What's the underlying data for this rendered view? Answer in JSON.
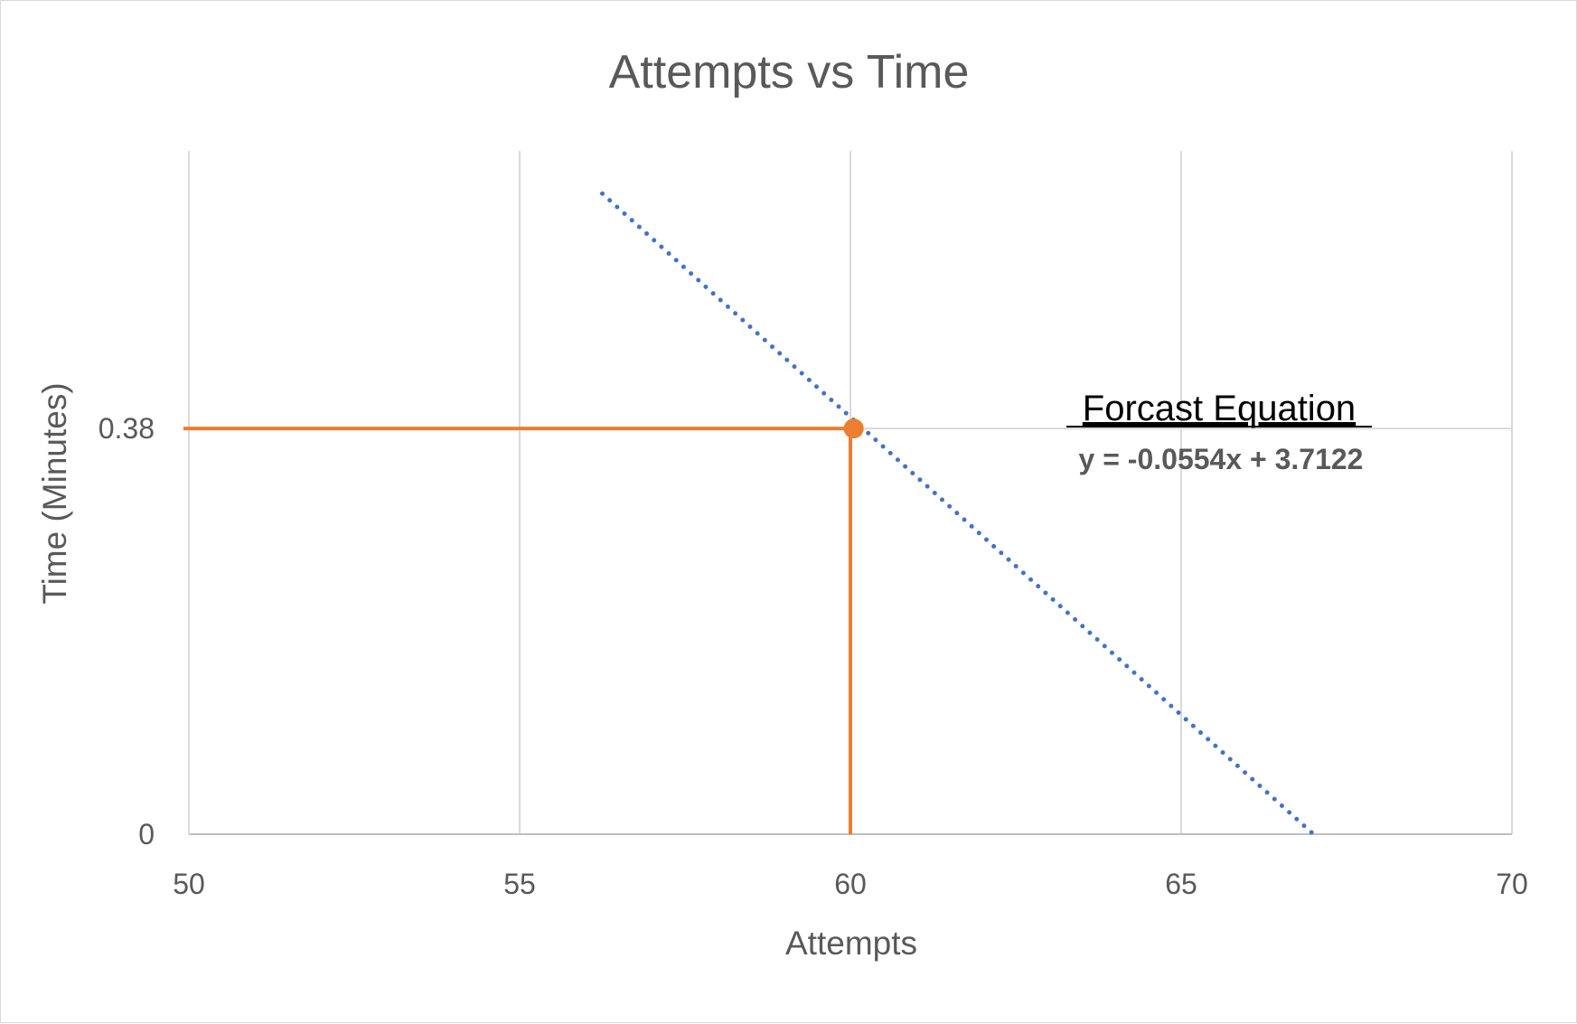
{
  "chart_data": {
    "type": "line",
    "title": "Attempts vs Time",
    "xlabel": "Attempts",
    "ylabel": "Time (Minutes)",
    "xlim": [
      50,
      70
    ],
    "ylim": [
      0,
      0.64
    ],
    "x_ticks": [
      "50",
      "55",
      "60",
      "65",
      "70"
    ],
    "x_tick_values": [
      50,
      55,
      60,
      65,
      70
    ],
    "y_ticks": [
      "0",
      "0.38"
    ],
    "y_tick_values": [
      0,
      0.38
    ],
    "grid": true,
    "series": [
      {
        "style": "dotted",
        "color": "#4472c4",
        "x": [
          56.25,
          67.0
        ],
        "y": [
          0.6,
          0
        ]
      }
    ],
    "highlight_point": {
      "x": 60.05,
      "y": 0.38,
      "color": "#ed7d31"
    },
    "reference_lines": [
      {
        "orientation": "horizontal",
        "y": 0.38,
        "x_from": 50,
        "x_to": 60.05,
        "color": "#ed7d31"
      },
      {
        "orientation": "vertical",
        "x": 60,
        "y_from": 0,
        "y_to": 0.38,
        "color": "#ed7d31"
      }
    ],
    "annotation": {
      "title": "Forcast Equation",
      "equation": "y = -0.0554x + 3.7122"
    }
  }
}
